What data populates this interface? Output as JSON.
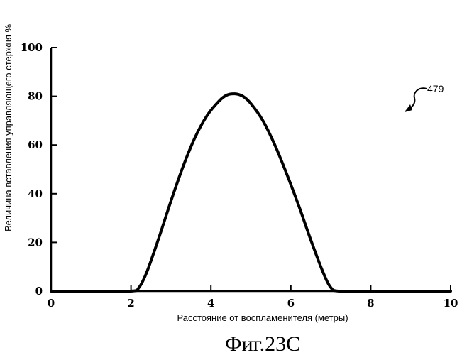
{
  "chart_data": {
    "type": "line",
    "xlabel": "Расстояние от воспламенителя (метры)",
    "ylabel": "Величина вставления управляющего стержня %",
    "xlim": [
      0,
      10
    ],
    "ylim": [
      0,
      100
    ],
    "x_ticks": [
      0,
      2,
      4,
      6,
      8,
      10
    ],
    "y_ticks": [
      0,
      20,
      40,
      60,
      80,
      100
    ],
    "grid": false,
    "series": [
      {
        "x": [
          0,
          1,
          2.0,
          2.2,
          2.4,
          2.7,
          3.0,
          3.3,
          3.6,
          3.9,
          4.2,
          4.4,
          4.6,
          4.8,
          5.0,
          5.3,
          5.6,
          5.9,
          6.2,
          6.5,
          6.8,
          7.0,
          7.2,
          8,
          9,
          10
        ],
        "y": [
          0,
          0,
          0,
          1.5,
          8,
          22,
          37,
          51,
          63,
          72,
          78,
          80.5,
          81,
          80,
          77,
          70,
          60,
          48,
          35,
          21,
          8,
          1.5,
          0,
          0,
          0,
          0
        ],
        "color": "#000000"
      }
    ],
    "annotation": "479",
    "caption": "Фиг.23С"
  }
}
